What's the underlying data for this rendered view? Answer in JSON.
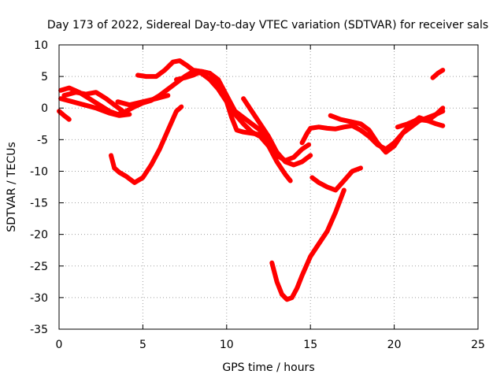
{
  "chart_data": {
    "type": "line",
    "title": "Day 173 of 2022, Sidereal Day-to-day VTEC variation (SDTVAR) for receiver sals",
    "xlabel": "GPS time / hours",
    "ylabel": "SDTVAR / TECUs",
    "xlim": [
      0,
      25
    ],
    "ylim": [
      -35,
      10
    ],
    "xticks": [
      "0",
      "5",
      "10",
      "15",
      "20",
      "25"
    ],
    "yticks": [
      "-35",
      "-30",
      "-25",
      "-20",
      "-15",
      "-10",
      "-5",
      "0",
      "5",
      "10"
    ],
    "xtick_values": [
      0,
      5,
      10,
      15,
      20,
      25
    ],
    "ytick_values": [
      -35,
      -30,
      -25,
      -20,
      -15,
      -10,
      -5,
      0,
      5,
      10
    ],
    "grid": true,
    "legend": "none",
    "series_color": "#ff0000",
    "series": [
      {
        "x": [
          0.0,
          0.3,
          0.6
        ],
        "y": [
          -0.5,
          -1.2,
          -1.8
        ]
      },
      {
        "x": [
          0.1,
          0.6,
          1.2,
          1.8,
          2.4,
          3.0,
          3.5,
          4.0,
          4.5,
          5.0,
          5.5,
          6.0,
          6.5,
          7.0,
          7.5,
          8.0,
          8.5,
          9.0,
          9.5,
          10.0,
          10.3,
          10.6,
          11.0,
          11.5,
          12.0,
          12.5,
          13.0,
          13.3
        ],
        "y": [
          2.8,
          3.2,
          2.5,
          1.5,
          0.5,
          -0.5,
          -1.0,
          -0.5,
          0.2,
          0.8,
          1.2,
          2.0,
          3.0,
          4.0,
          5.0,
          5.8,
          5.5,
          4.5,
          3.0,
          1.0,
          -1.5,
          -3.5,
          -3.8,
          -4.0,
          -4.2,
          -5.0,
          -7.0,
          -8.0
        ]
      },
      {
        "x": [
          0.1,
          0.8,
          1.5,
          2.2,
          3.0,
          3.6,
          4.2
        ],
        "y": [
          1.5,
          1.0,
          0.5,
          0.0,
          -0.8,
          -1.2,
          -1.0
        ]
      },
      {
        "x": [
          0.3,
          1.0,
          1.6,
          2.2,
          2.8,
          3.3,
          3.8
        ],
        "y": [
          2.0,
          2.5,
          2.2,
          2.5,
          1.5,
          0.5,
          -0.5
        ]
      },
      {
        "x": [
          3.5,
          4.2,
          5.0,
          5.8,
          6.5
        ],
        "y": [
          1.0,
          0.5,
          1.0,
          1.5,
          2.0
        ]
      },
      {
        "x": [
          3.1,
          3.3,
          3.6,
          4.0,
          4.5,
          5.0,
          5.5,
          6.0,
          6.5,
          7.0,
          7.3
        ],
        "y": [
          -7.5,
          -9.5,
          -10.2,
          -10.8,
          -11.8,
          -11.0,
          -9.0,
          -6.5,
          -3.5,
          -0.5,
          0.2
        ]
      },
      {
        "x": [
          4.7,
          5.2,
          5.8,
          6.3,
          6.8,
          7.2,
          7.6,
          8.0,
          8.5,
          9.0,
          9.5,
          10.0,
          10.5,
          11.0,
          11.5,
          12.0,
          12.5,
          13.0,
          13.5,
          14.0,
          14.5,
          14.9
        ],
        "y": [
          5.2,
          5.0,
          5.0,
          6.0,
          7.3,
          7.5,
          6.8,
          6.0,
          5.8,
          5.5,
          4.5,
          2.0,
          -0.5,
          -1.5,
          -2.5,
          -3.5,
          -5.0,
          -7.5,
          -8.3,
          -7.8,
          -6.5,
          -5.8
        ]
      },
      {
        "x": [
          7.0,
          7.5,
          8.0,
          8.5,
          9.0,
          9.5,
          10.0,
          10.5,
          11.0,
          11.5,
          12.0,
          12.5,
          13.0,
          13.5,
          13.8
        ],
        "y": [
          4.5,
          4.8,
          5.2,
          5.8,
          5.5,
          4.0,
          1.5,
          -1.0,
          -2.5,
          -3.8,
          -4.5,
          -6.0,
          -8.5,
          -10.5,
          -11.5
        ]
      },
      {
        "x": [
          11.0,
          11.5,
          12.0,
          12.5,
          13.0,
          13.5,
          14.0,
          14.5,
          15.0
        ],
        "y": [
          1.5,
          -0.5,
          -2.5,
          -4.5,
          -7.0,
          -8.5,
          -9.0,
          -8.5,
          -7.5
        ]
      },
      {
        "x": [
          12.7,
          13.0,
          13.3,
          13.6,
          13.9,
          14.2,
          14.5,
          15.0,
          15.5,
          16.0,
          16.5,
          17.0
        ],
        "y": [
          -24.5,
          -27.5,
          -29.5,
          -30.3,
          -30.0,
          -28.5,
          -26.5,
          -23.5,
          -21.5,
          -19.5,
          -16.5,
          -13.0
        ]
      },
      {
        "x": [
          15.1,
          15.5,
          16.0,
          16.5,
          17.0,
          17.5,
          18.0
        ],
        "y": [
          -11.0,
          -11.8,
          -12.5,
          -13.0,
          -11.5,
          -10.0,
          -9.5
        ]
      },
      {
        "x": [
          14.5,
          14.8,
          15.0,
          15.5,
          16.0,
          16.5,
          17.0,
          17.5,
          18.0,
          18.5,
          19.0,
          19.5,
          20.0,
          20.5,
          21.0,
          21.5,
          22.0,
          22.5,
          22.9
        ],
        "y": [
          -5.5,
          -4.0,
          -3.2,
          -3.0,
          -3.2,
          -3.3,
          -3.0,
          -2.8,
          -3.5,
          -4.5,
          -5.8,
          -6.5,
          -5.5,
          -4.0,
          -3.0,
          -2.0,
          -1.5,
          -1.0,
          -0.5
        ]
      },
      {
        "x": [
          16.2,
          16.8,
          17.5,
          18.0,
          18.5,
          19.0,
          19.5,
          20.0,
          20.5,
          21.0,
          21.5,
          22.0,
          22.5,
          22.9
        ],
        "y": [
          -1.2,
          -1.8,
          -2.2,
          -2.5,
          -3.5,
          -5.5,
          -7.0,
          -6.0,
          -4.0,
          -2.5,
          -1.5,
          -2.0,
          -2.5,
          -2.8
        ]
      },
      {
        "x": [
          20.2,
          20.8,
          21.4,
          22.0,
          22.5,
          22.9
        ],
        "y": [
          -3.0,
          -2.5,
          -1.8,
          -2.0,
          -1.0,
          0.0
        ]
      },
      {
        "x": [
          22.3,
          22.6,
          22.9
        ],
        "y": [
          4.8,
          5.5,
          6.0
        ]
      }
    ]
  }
}
